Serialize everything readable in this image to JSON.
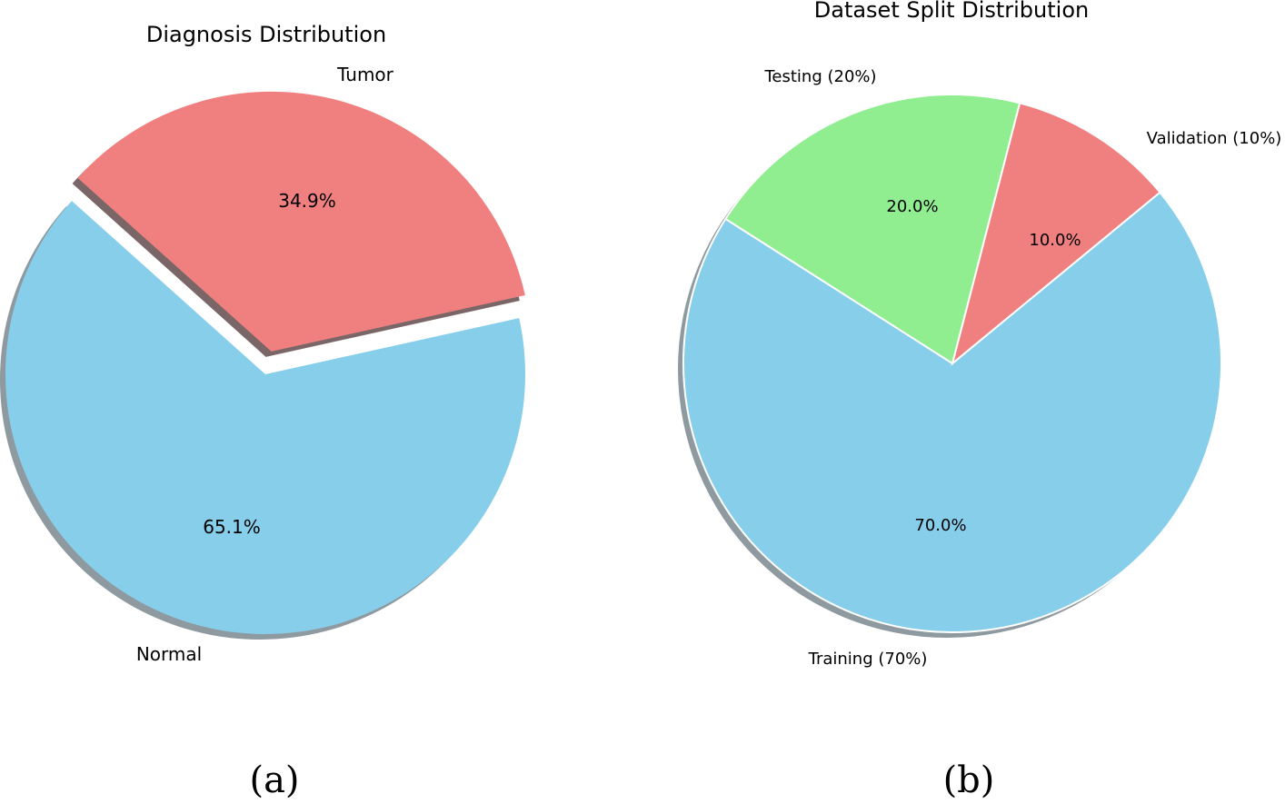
{
  "chart_data": [
    {
      "type": "pie",
      "title": "Diagnosis Distribution",
      "caption": "(a)",
      "categories": [
        "Normal",
        "Tumor"
      ],
      "values": [
        65.1,
        34.9
      ],
      "value_labels": [
        "65.1%",
        "34.9%"
      ],
      "colors": [
        "#87ceeb",
        "#f08080"
      ],
      "exploded": [
        "Tumor"
      ],
      "shadow": true
    },
    {
      "type": "pie",
      "title": "Dataset Split Distribution",
      "caption": "(b)",
      "categories": [
        "Training (70%)",
        "Validation (10%)",
        "Testing (20%)"
      ],
      "values": [
        70.0,
        10.0,
        20.0
      ],
      "value_labels": [
        "70.0%",
        "10.0%",
        "20.0%"
      ],
      "colors": [
        "#87ceeb",
        "#f08080",
        "#90ee90"
      ],
      "shadow": true
    }
  ]
}
